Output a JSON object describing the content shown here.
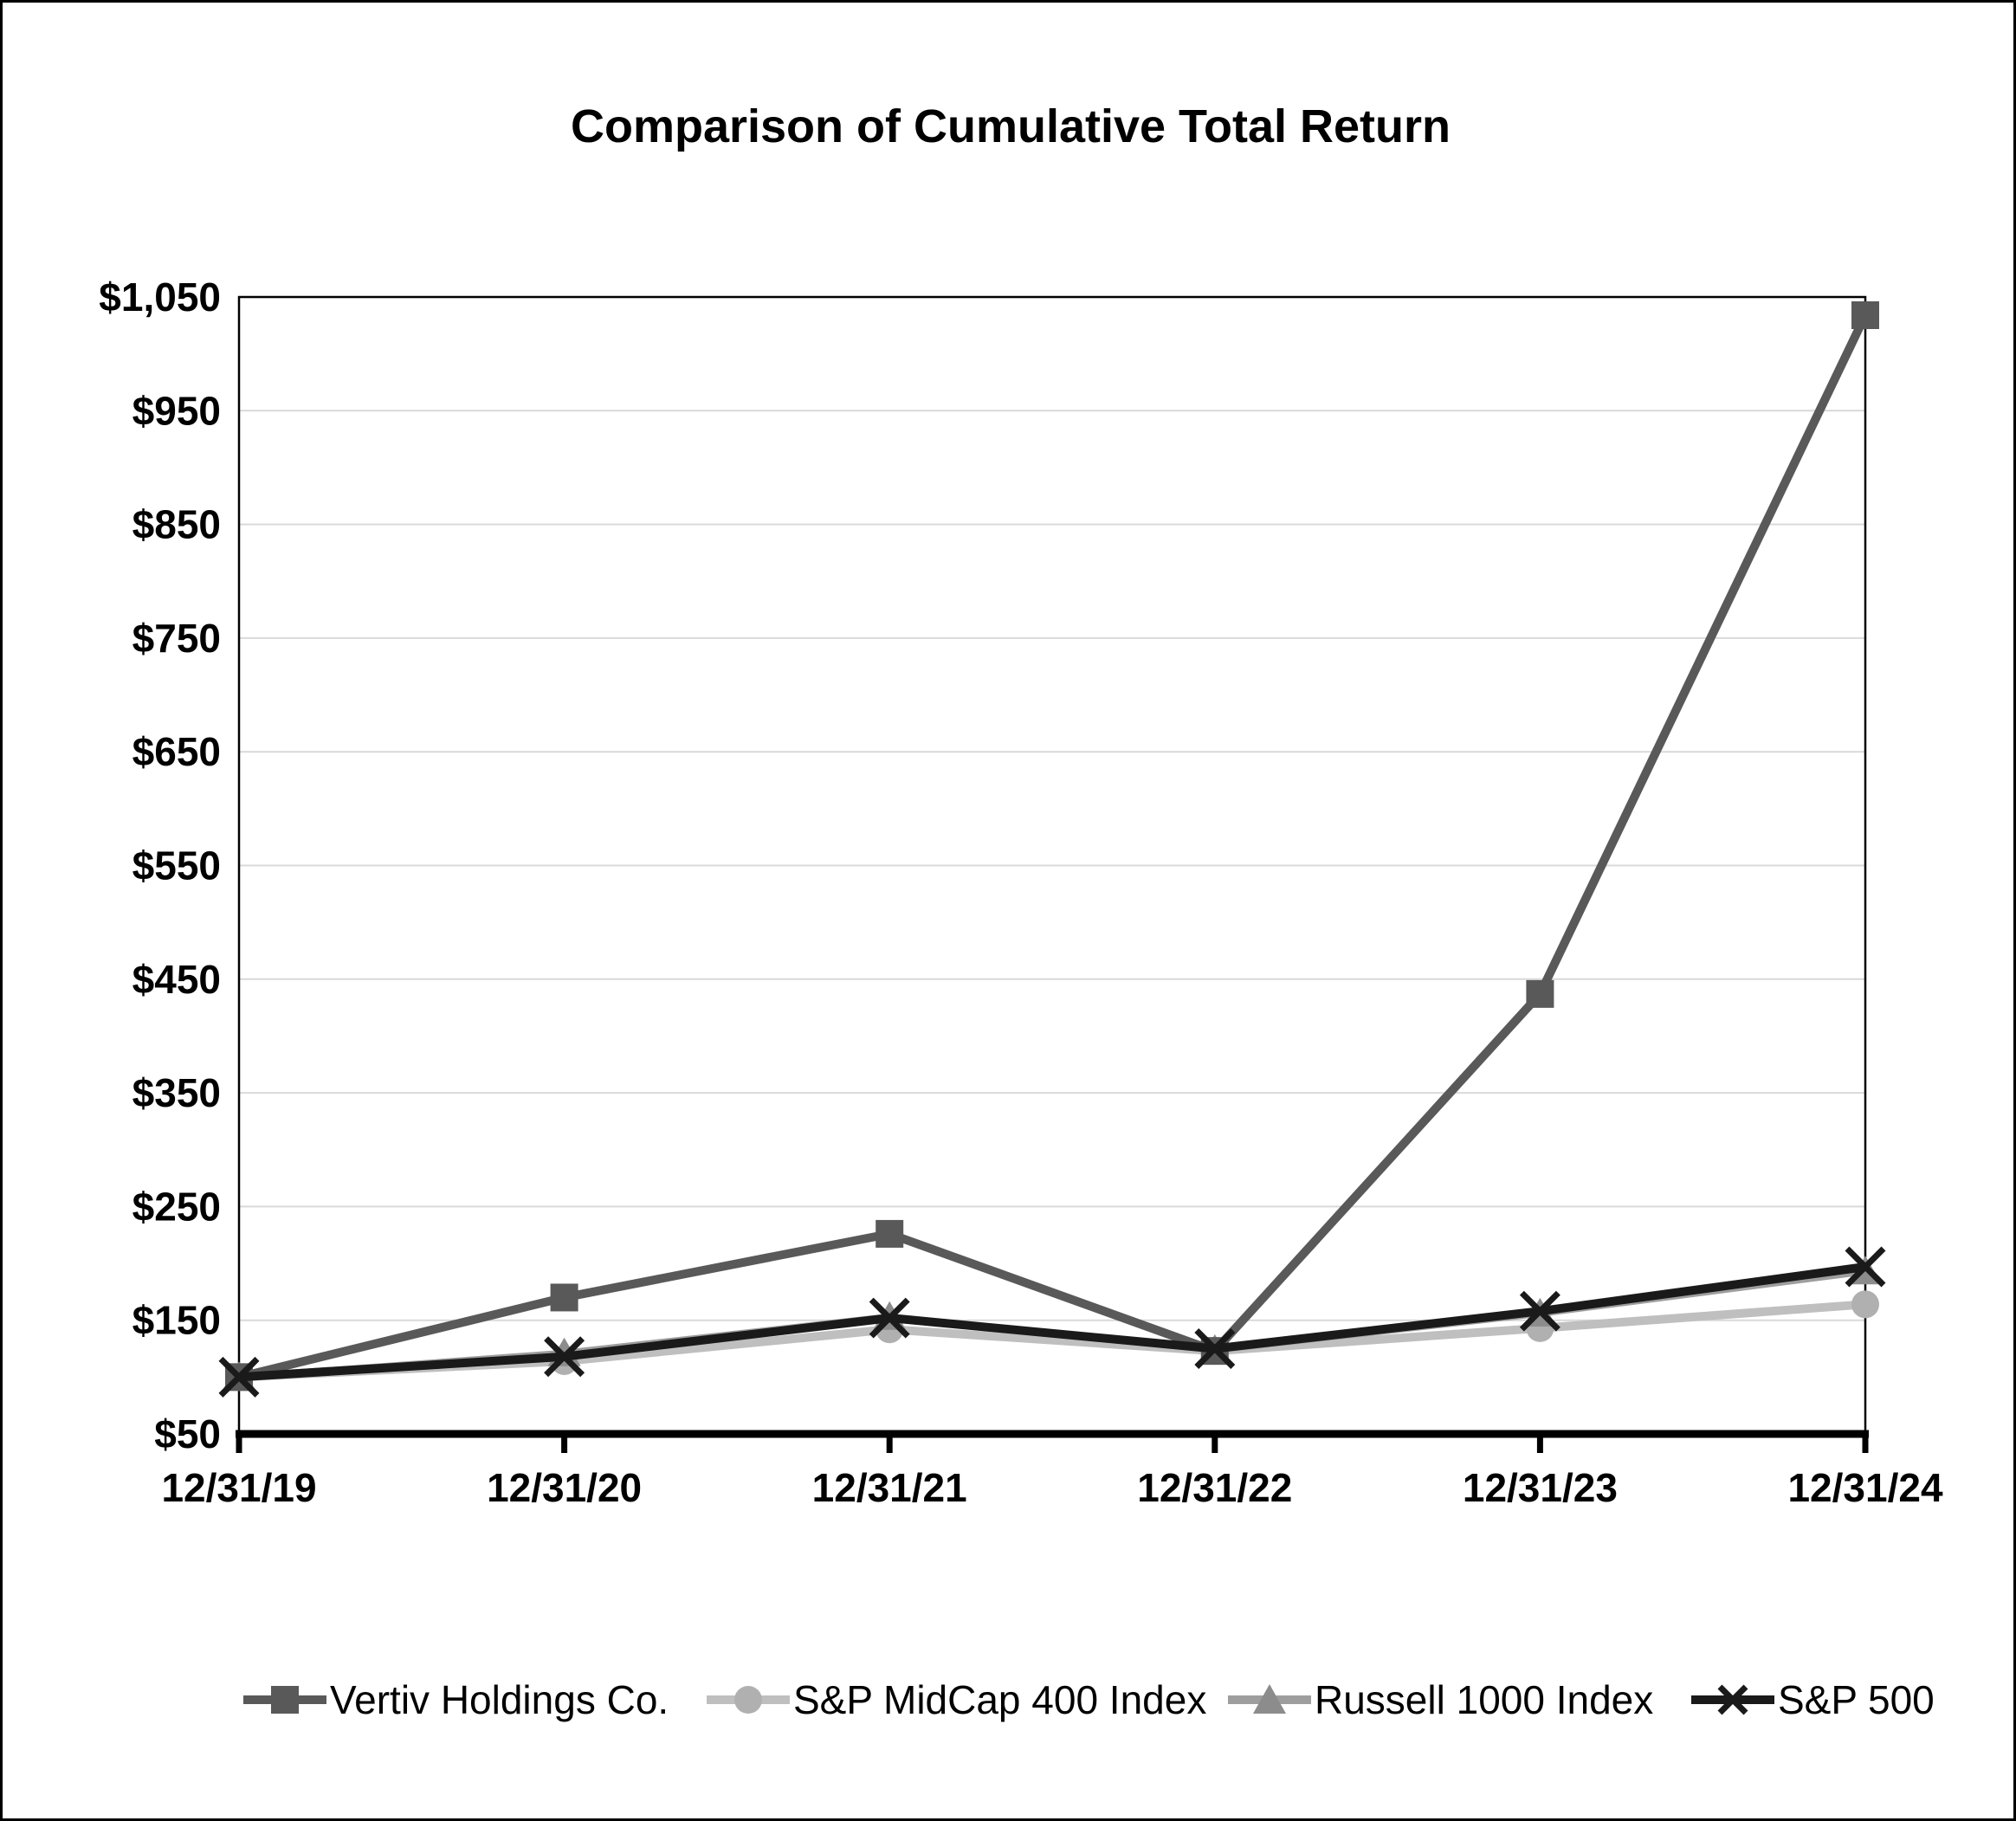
{
  "title": "Comparison of Cumulative Total Return",
  "chart_data": {
    "type": "line",
    "title": "Comparison of Cumulative Total Return",
    "categories": [
      "12/31/19",
      "12/31/20",
      "12/31/21",
      "12/31/22",
      "12/31/23",
      "12/31/24"
    ],
    "series": [
      {
        "name": "Vertiv Holdings Co.",
        "marker": "square",
        "color": "#595959",
        "marker_color": "#595959",
        "values": [
          100,
          170,
          226,
          123,
          437,
          1034
        ]
      },
      {
        "name": "S&P MidCap 400 Index",
        "marker": "circle",
        "color": "#bfbfbf",
        "marker_color": "#b0b0b0",
        "values": [
          100,
          114,
          142,
          123,
          143,
          164
        ]
      },
      {
        "name": "Russell 1000 Index",
        "marker": "triangle",
        "color": "#9e9e9e",
        "marker_color": "#8c8c8c",
        "values": [
          100,
          121,
          153,
          124,
          156,
          193
        ]
      },
      {
        "name": "S&P 500",
        "marker": "x",
        "color": "#1a1a1a",
        "marker_color": "#1a1a1a",
        "values": [
          100,
          118,
          152,
          125,
          158,
          197
        ]
      }
    ],
    "xlabel": "",
    "ylabel": "",
    "ylim": [
      50,
      1050
    ],
    "y_tick_step": 100,
    "y_tick_labels": [
      "$50",
      "$150",
      "$250",
      "$350",
      "$450",
      "$550",
      "$650",
      "$750",
      "$850",
      "$950",
      "$1,050"
    ],
    "grid": true,
    "legend_position": "bottom"
  },
  "colors": {
    "background": "#ffffff",
    "gridline": "#d9d9d9",
    "axis": "#000000",
    "plot_border": "#000000",
    "text": "#000000"
  }
}
